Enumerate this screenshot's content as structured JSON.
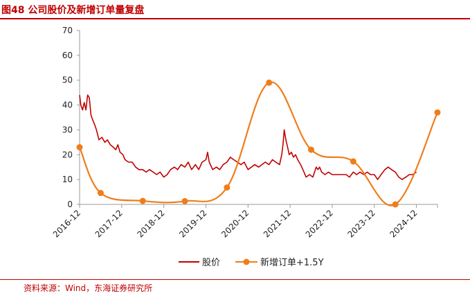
{
  "header": {
    "title": "图48  公司股价及新增订单量复盘"
  },
  "footer": {
    "source": "资料来源：Wind，东海证券研究所"
  },
  "chart_data": {
    "type": "line",
    "title": "图48  公司股价及新增订单量复盘",
    "xlabel": "",
    "ylabel": "",
    "ylim": [
      0,
      70
    ],
    "yticks": [
      0,
      10,
      20,
      30,
      40,
      50,
      60,
      70
    ],
    "x_tick_labels": [
      "2016-12",
      "2017-12",
      "2018-12",
      "2019-12",
      "2020-12",
      "2021-12",
      "2022-12",
      "2023-12",
      "2024-12"
    ],
    "legend_position": "bottom",
    "grid": false,
    "series": [
      {
        "name": "股价",
        "color": "#c00000",
        "style": "line",
        "points": [
          [
            2016.92,
            44
          ],
          [
            2016.95,
            40
          ],
          [
            2016.99,
            38
          ],
          [
            2017.03,
            41
          ],
          [
            2017.07,
            38
          ],
          [
            2017.11,
            44
          ],
          [
            2017.15,
            43
          ],
          [
            2017.19,
            36
          ],
          [
            2017.23,
            34
          ],
          [
            2017.28,
            32
          ],
          [
            2017.32,
            30
          ],
          [
            2017.38,
            26
          ],
          [
            2017.45,
            27
          ],
          [
            2017.52,
            25
          ],
          [
            2017.58,
            26
          ],
          [
            2017.65,
            24
          ],
          [
            2017.72,
            23
          ],
          [
            2017.78,
            22
          ],
          [
            2017.83,
            24
          ],
          [
            2017.88,
            21
          ],
          [
            2017.95,
            20
          ],
          [
            2018.0,
            18
          ],
          [
            2018.08,
            17
          ],
          [
            2018.17,
            17
          ],
          [
            2018.25,
            15
          ],
          [
            2018.33,
            14
          ],
          [
            2018.42,
            14
          ],
          [
            2018.5,
            13
          ],
          [
            2018.58,
            14
          ],
          [
            2018.67,
            13
          ],
          [
            2018.75,
            12
          ],
          [
            2018.83,
            13
          ],
          [
            2018.92,
            11
          ],
          [
            2019.0,
            12
          ],
          [
            2019.08,
            14
          ],
          [
            2019.17,
            15
          ],
          [
            2019.25,
            14
          ],
          [
            2019.33,
            16
          ],
          [
            2019.42,
            15
          ],
          [
            2019.5,
            17
          ],
          [
            2019.58,
            14
          ],
          [
            2019.67,
            16
          ],
          [
            2019.75,
            14
          ],
          [
            2019.83,
            17
          ],
          [
            2019.92,
            18
          ],
          [
            2019.96,
            21
          ],
          [
            2020.0,
            17
          ],
          [
            2020.08,
            14
          ],
          [
            2020.17,
            15
          ],
          [
            2020.25,
            14
          ],
          [
            2020.33,
            16
          ],
          [
            2020.42,
            17
          ],
          [
            2020.5,
            19
          ],
          [
            2020.58,
            18
          ],
          [
            2020.67,
            17
          ],
          [
            2020.75,
            16
          ],
          [
            2020.83,
            17
          ],
          [
            2020.92,
            14
          ],
          [
            2021.0,
            15
          ],
          [
            2021.08,
            16
          ],
          [
            2021.17,
            15
          ],
          [
            2021.25,
            16
          ],
          [
            2021.33,
            17
          ],
          [
            2021.42,
            16
          ],
          [
            2021.5,
            18
          ],
          [
            2021.58,
            17
          ],
          [
            2021.67,
            16
          ],
          [
            2021.72,
            20
          ],
          [
            2021.75,
            24
          ],
          [
            2021.78,
            30
          ],
          [
            2021.82,
            26
          ],
          [
            2021.86,
            23
          ],
          [
            2021.9,
            20
          ],
          [
            2021.95,
            21
          ],
          [
            2022.0,
            19
          ],
          [
            2022.05,
            20
          ],
          [
            2022.1,
            18
          ],
          [
            2022.17,
            16
          ],
          [
            2022.25,
            13
          ],
          [
            2022.3,
            11
          ],
          [
            2022.38,
            12
          ],
          [
            2022.46,
            11
          ],
          [
            2022.5,
            13
          ],
          [
            2022.54,
            15
          ],
          [
            2022.58,
            14
          ],
          [
            2022.62,
            15
          ],
          [
            2022.67,
            13
          ],
          [
            2022.75,
            12
          ],
          [
            2022.83,
            13
          ],
          [
            2022.92,
            12
          ],
          [
            2023.0,
            12
          ],
          [
            2023.08,
            12
          ],
          [
            2023.17,
            12
          ],
          [
            2023.25,
            12
          ],
          [
            2023.33,
            11
          ],
          [
            2023.42,
            13
          ],
          [
            2023.5,
            12
          ],
          [
            2023.58,
            13
          ],
          [
            2023.67,
            12
          ],
          [
            2023.75,
            13
          ],
          [
            2023.83,
            12
          ],
          [
            2023.92,
            12
          ],
          [
            2024.0,
            10
          ],
          [
            2024.08,
            12
          ],
          [
            2024.17,
            14
          ],
          [
            2024.25,
            15
          ],
          [
            2024.33,
            14
          ],
          [
            2024.42,
            13
          ],
          [
            2024.5,
            11
          ],
          [
            2024.58,
            10
          ],
          [
            2024.67,
            11
          ],
          [
            2024.75,
            12
          ],
          [
            2024.83,
            12
          ],
          [
            2024.92,
            13
          ]
        ]
      },
      {
        "name": "新增订单+1.5Y",
        "color": "#f07d19",
        "style": "smooth-line-markers",
        "points": [
          [
            2016.92,
            23
          ],
          [
            2017.42,
            4.6
          ],
          [
            2018.42,
            1.4
          ],
          [
            2019.42,
            1.3
          ],
          [
            2020.42,
            6.8
          ],
          [
            2021.42,
            49
          ],
          [
            2022.42,
            22
          ],
          [
            2023.42,
            17.3
          ],
          [
            2024.42,
            0
          ],
          [
            2025.42,
            37
          ]
        ]
      }
    ]
  }
}
